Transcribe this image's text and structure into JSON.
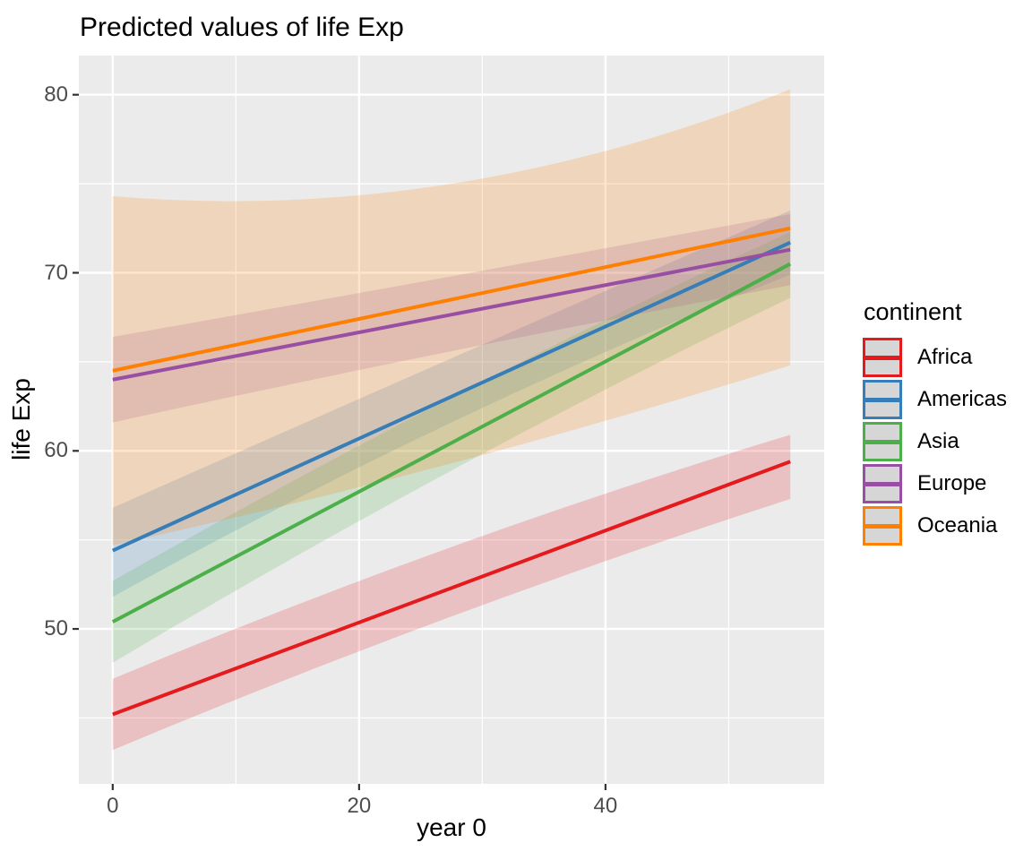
{
  "chart_data": {
    "type": "line",
    "title": "Predicted values of life Exp",
    "xlabel": "year 0",
    "ylabel": "life Exp",
    "xlim": [
      -2.75,
      57.75
    ],
    "ylim": [
      41.3,
      82.2
    ],
    "x_ticks_major": [
      0,
      20,
      40
    ],
    "x_ticks_minor": [
      10,
      30,
      50
    ],
    "y_ticks_major": [
      50,
      60,
      70,
      80
    ],
    "y_ticks_minor": [
      45,
      55,
      65,
      75
    ],
    "grid": "major and minor white gridlines on gray panel",
    "legend_title": "continent",
    "legend_position": "right",
    "ribbon_opacity": 0.2,
    "series": [
      {
        "name": "Africa",
        "color": "#E41A1C",
        "line_x": [
          0,
          55
        ],
        "line_y": [
          45.2,
          59.4
        ],
        "ribbon_x": [
          0,
          27.5,
          55
        ],
        "ribbon_lower": [
          43.2,
          50.7,
          57.3
        ],
        "ribbon_upper": [
          47.2,
          54.6,
          60.9
        ]
      },
      {
        "name": "Americas",
        "color": "#377EB8",
        "line_x": [
          0,
          55
        ],
        "line_y": [
          54.4,
          71.7
        ],
        "ribbon_x": [
          0,
          27.5,
          55
        ],
        "ribbon_lower": [
          51.8,
          61.6,
          69.9
        ],
        "ribbon_upper": [
          56.8,
          65.2,
          73.5
        ]
      },
      {
        "name": "Asia",
        "color": "#4DAF4A",
        "line_x": [
          0,
          55
        ],
        "line_y": [
          50.4,
          70.5
        ],
        "ribbon_x": [
          0,
          27.5,
          55
        ],
        "ribbon_lower": [
          48.1,
          58.9,
          68.6
        ],
        "ribbon_upper": [
          52.7,
          63.0,
          72.3
        ]
      },
      {
        "name": "Europe",
        "color": "#984EA3",
        "line_x": [
          0,
          55
        ],
        "line_y": [
          64.0,
          71.3
        ],
        "ribbon_x": [
          0,
          27.5,
          55
        ],
        "ribbon_lower": [
          61.6,
          65.6,
          69.3
        ],
        "ribbon_upper": [
          66.4,
          69.8,
          73.3
        ]
      },
      {
        "name": "Oceania",
        "color": "#FF7F00",
        "line_x": [
          0,
          55
        ],
        "line_y": [
          64.5,
          72.5
        ],
        "ribbon_x": [
          0,
          27.5,
          55
        ],
        "ribbon_lower": [
          54.7,
          59.3,
          64.8
        ],
        "ribbon_upper": [
          74.3,
          75.0,
          80.3
        ]
      }
    ]
  },
  "panel": {
    "bg_color": "#EBEBEB",
    "grid_color": "#FFFFFF",
    "tick_mark_color": "#333333",
    "tick_label_color": "#4D4D4D",
    "legend_key_bg": "#D6D6D6"
  }
}
